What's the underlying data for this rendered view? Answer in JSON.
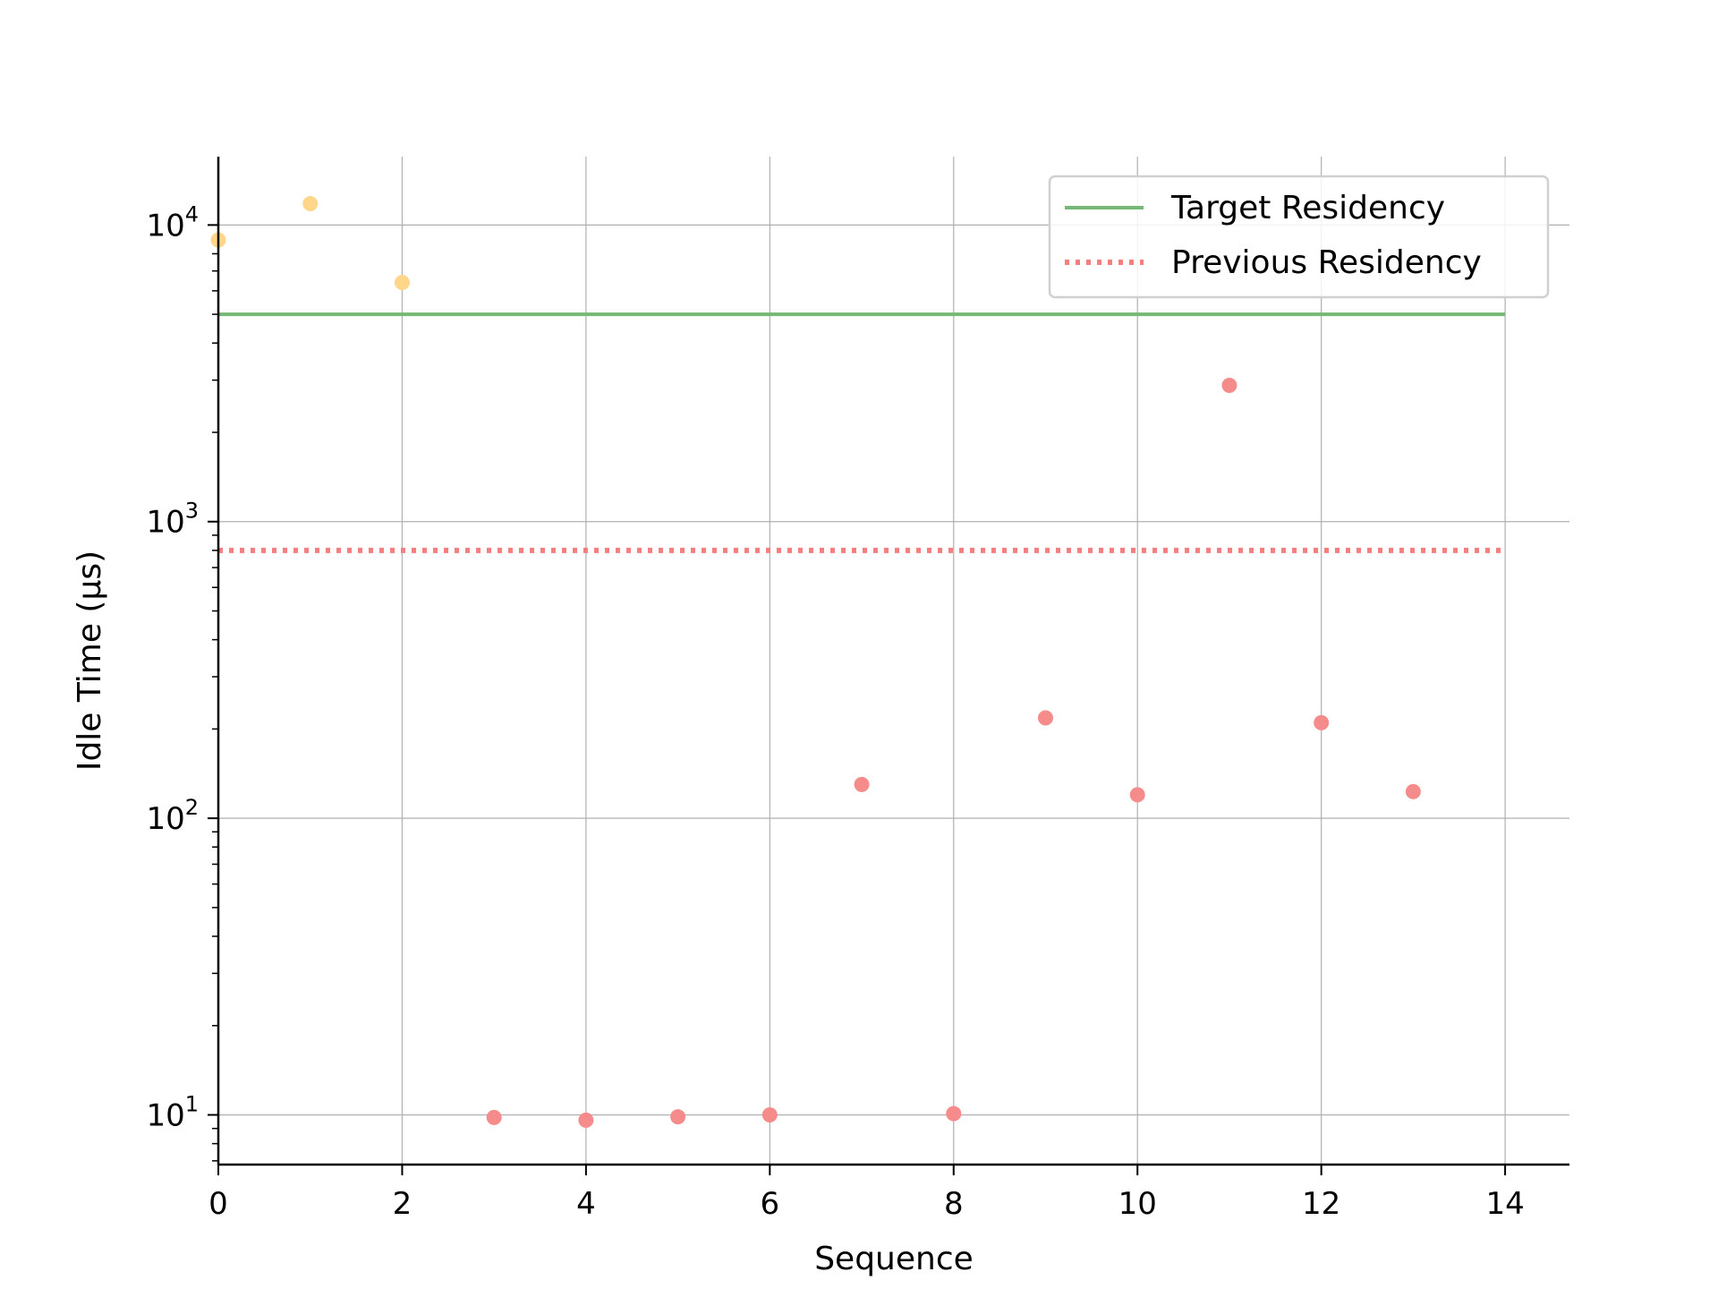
{
  "chart_data": {
    "type": "scatter",
    "xlabel": "Sequence",
    "ylabel": "Idle Time (µs)",
    "xlim": [
      0,
      14.7
    ],
    "ylim": [
      6.8,
      17000
    ],
    "yscale": "log",
    "grid": true,
    "legend": {
      "placement": "top-right"
    },
    "x_ticks": [
      "0",
      "2",
      "4",
      "6",
      "8",
      "10",
      "12",
      "14"
    ],
    "y_ticks": [
      {
        "base": "10",
        "exp": "1",
        "value": 10
      },
      {
        "base": "10",
        "exp": "2",
        "value": 100
      },
      {
        "base": "10",
        "exp": "3",
        "value": 1000
      },
      {
        "base": "10",
        "exp": "4",
        "value": 10000
      }
    ],
    "points": [
      {
        "x": 0,
        "y": 8900,
        "color": "#ffd68a"
      },
      {
        "x": 1,
        "y": 11800,
        "color": "#ffd68a"
      },
      {
        "x": 2,
        "y": 6400,
        "color": "#ffd68a"
      },
      {
        "x": 3,
        "y": 9.8,
        "color": "#f58b8b"
      },
      {
        "x": 4,
        "y": 9.6,
        "color": "#f58b8b"
      },
      {
        "x": 5,
        "y": 9.85,
        "color": "#f58b8b"
      },
      {
        "x": 6,
        "y": 10.0,
        "color": "#f58b8b"
      },
      {
        "x": 7,
        "y": 130,
        "color": "#f58b8b"
      },
      {
        "x": 8,
        "y": 10.1,
        "color": "#f58b8b"
      },
      {
        "x": 9,
        "y": 218,
        "color": "#f58b8b"
      },
      {
        "x": 10,
        "y": 120,
        "color": "#f58b8b"
      },
      {
        "x": 11,
        "y": 2880,
        "color": "#f58b8b"
      },
      {
        "x": 12,
        "y": 210,
        "color": "#f58b8b"
      },
      {
        "x": 13,
        "y": 123,
        "color": "#f58b8b"
      }
    ],
    "lines": [
      {
        "name": "Target Residency",
        "y": 5000,
        "x_range": [
          0,
          14
        ],
        "style": "solid",
        "color": "#76b876"
      },
      {
        "name": "Previous Residency",
        "y": 800,
        "x_range": [
          0,
          14
        ],
        "style": "dotted",
        "color": "#f57f7f"
      }
    ]
  }
}
